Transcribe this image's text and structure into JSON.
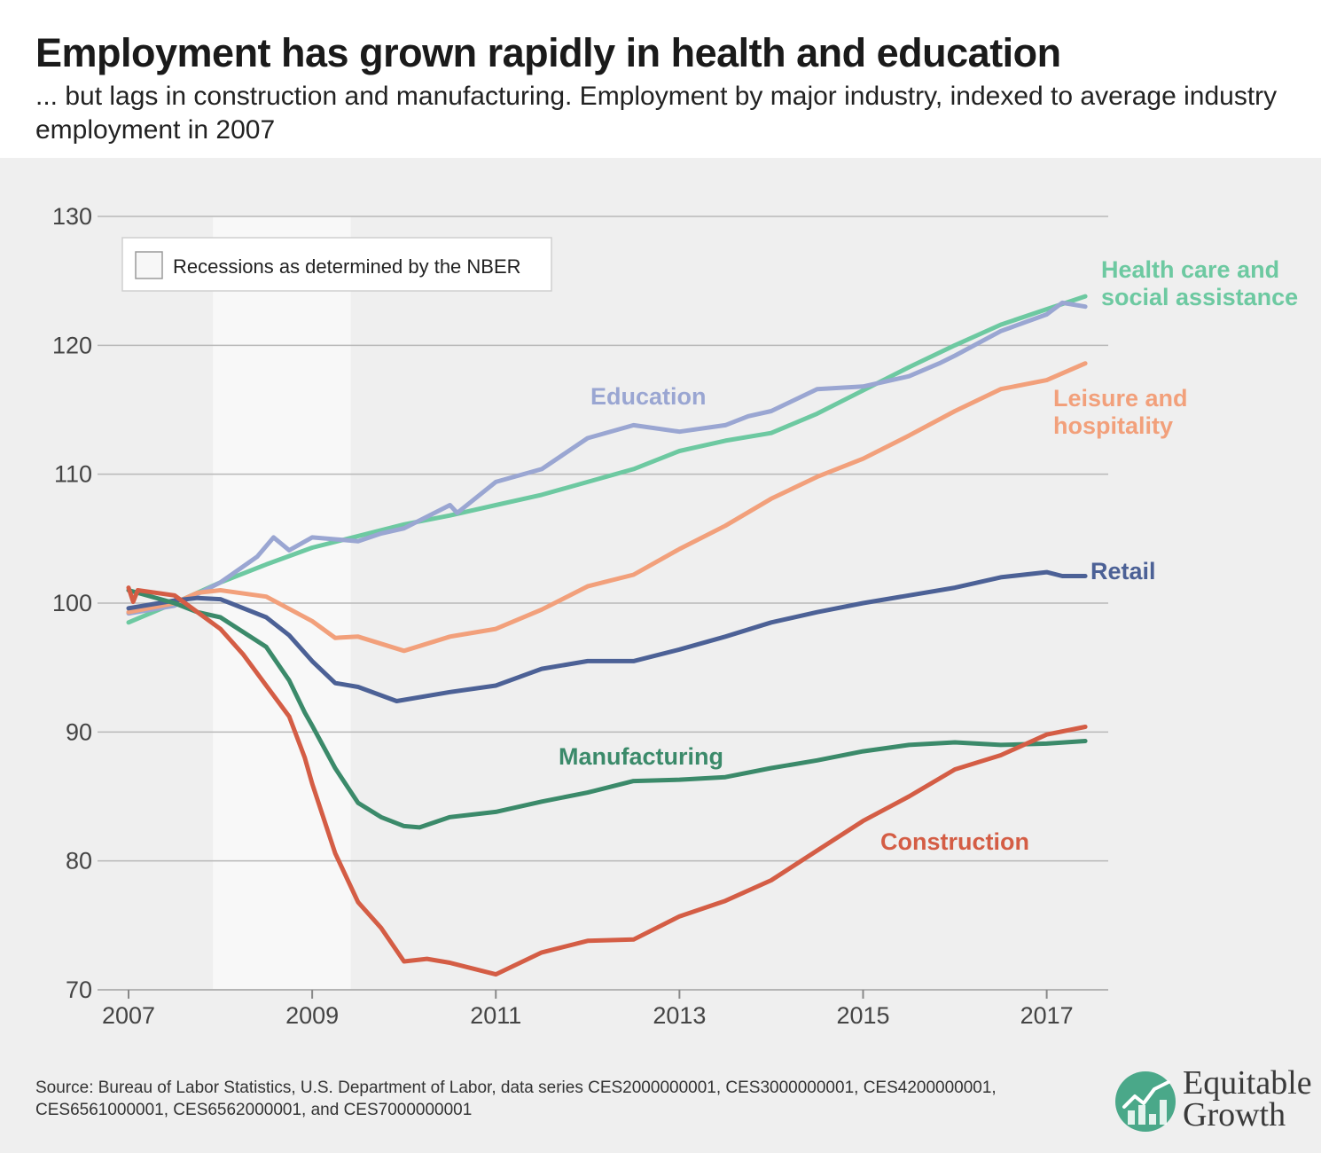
{
  "title": "Employment has grown rapidly in health and education",
  "subtitle": "... but lags in construction and manufacturing. Employment by major industry, indexed to average industry employment in 2007",
  "source": "Source: Bureau of Labor Statistics, U.S. Department of Labor, data series CES2000000001, CES3000000001, CES4200000001, CES6561000001, CES6562000001, and CES7000000001",
  "logo": {
    "line1": "Equitable",
    "line2": "Growth",
    "icon": "growth-chart-logo-icon",
    "color": "#4aa889"
  },
  "chart_data": {
    "type": "line",
    "ylim": [
      70,
      130
    ],
    "yticks": [
      70,
      80,
      90,
      100,
      110,
      120,
      130
    ],
    "xlim": [
      2007,
      2017.67
    ],
    "xticks": [
      2007,
      2009,
      2011,
      2013,
      2015,
      2017
    ],
    "xtick_labels": [
      "2007",
      "2009",
      "2011",
      "2013",
      "2015",
      "2017"
    ],
    "grid": "horizontal",
    "recession": {
      "start": 2007.92,
      "end": 2009.42,
      "legend_label": "Recessions as determined by the NBER"
    },
    "legend_placement": "top-left",
    "series": [
      {
        "name": "Health care and social assistance",
        "color": "#6dc9a1",
        "x": [
          2007.0,
          2007.5,
          2008.0,
          2008.5,
          2009.0,
          2009.5,
          2010.0,
          2010.5,
          2011.0,
          2011.5,
          2012.0,
          2012.5,
          2013.0,
          2013.5,
          2014.0,
          2014.5,
          2015.0,
          2015.5,
          2016.0,
          2016.5,
          2017.0,
          2017.42
        ],
        "y": [
          98.5,
          100.0,
          101.6,
          103.0,
          104.3,
          105.2,
          106.1,
          106.8,
          107.6,
          108.4,
          109.4,
          110.4,
          111.8,
          112.6,
          113.2,
          114.7,
          116.5,
          118.3,
          120.0,
          121.6,
          122.8,
          123.8
        ]
      },
      {
        "name": "Education",
        "color": "#9aa6d2",
        "x": [
          2007.0,
          2007.5,
          2008.0,
          2008.4,
          2008.58,
          2008.75,
          2009.0,
          2009.5,
          2009.75,
          2010.0,
          2010.5,
          2010.58,
          2011.0,
          2011.5,
          2012.0,
          2012.5,
          2013.0,
          2013.5,
          2013.75,
          2014.0,
          2014.5,
          2015.0,
          2015.5,
          2015.83,
          2016.0,
          2016.5,
          2017.0,
          2017.17,
          2017.42
        ],
        "y": [
          99.2,
          99.8,
          101.6,
          103.6,
          105.1,
          104.1,
          105.1,
          104.8,
          105.4,
          105.8,
          107.6,
          107.0,
          109.4,
          110.4,
          112.8,
          113.8,
          113.3,
          113.8,
          114.5,
          114.9,
          116.6,
          116.8,
          117.6,
          118.6,
          119.2,
          121.1,
          122.4,
          123.3,
          123.0
        ]
      },
      {
        "name": "Leisure and hospitality",
        "color": "#f2a07b",
        "x": [
          2007.0,
          2007.5,
          2007.75,
          2008.0,
          2008.5,
          2009.0,
          2009.25,
          2009.5,
          2010.0,
          2010.5,
          2011.0,
          2011.5,
          2012.0,
          2012.5,
          2013.0,
          2013.5,
          2014.0,
          2014.5,
          2015.0,
          2015.5,
          2016.0,
          2016.5,
          2017.0,
          2017.42
        ],
        "y": [
          99.3,
          100.0,
          100.8,
          101.0,
          100.5,
          98.6,
          97.3,
          97.4,
          96.3,
          97.4,
          98.0,
          99.5,
          101.3,
          102.2,
          104.2,
          106.0,
          108.1,
          109.8,
          111.2,
          113.0,
          114.9,
          116.6,
          117.3,
          118.6
        ]
      },
      {
        "name": "Retail",
        "color": "#4c6196",
        "x": [
          2007.0,
          2007.5,
          2007.75,
          2008.0,
          2008.5,
          2008.75,
          2009.0,
          2009.25,
          2009.5,
          2009.92,
          2010.5,
          2011.0,
          2011.5,
          2012.0,
          2012.5,
          2013.0,
          2013.5,
          2014.0,
          2014.5,
          2015.0,
          2015.5,
          2016.0,
          2016.5,
          2017.0,
          2017.17,
          2017.42
        ],
        "y": [
          99.6,
          100.2,
          100.4,
          100.3,
          98.9,
          97.5,
          95.5,
          93.8,
          93.5,
          92.4,
          93.1,
          93.6,
          94.9,
          95.5,
          95.5,
          96.4,
          97.4,
          98.5,
          99.3,
          100.0,
          100.6,
          101.2,
          102.0,
          102.4,
          102.1,
          102.1
        ]
      },
      {
        "name": "Manufacturing",
        "color": "#3b8a6a",
        "x": [
          2007.0,
          2007.5,
          2007.75,
          2008.0,
          2008.5,
          2008.75,
          2008.92,
          2009.0,
          2009.25,
          2009.5,
          2009.75,
          2010.0,
          2010.17,
          2010.5,
          2011.0,
          2011.5,
          2012.0,
          2012.5,
          2013.0,
          2013.5,
          2014.0,
          2014.5,
          2015.0,
          2015.5,
          2016.0,
          2016.5,
          2017.0,
          2017.42
        ],
        "y": [
          101.0,
          100.0,
          99.3,
          98.9,
          96.6,
          94.0,
          91.5,
          90.5,
          87.2,
          84.5,
          83.4,
          82.7,
          82.6,
          83.4,
          83.8,
          84.6,
          85.3,
          86.2,
          86.3,
          86.5,
          87.2,
          87.8,
          88.5,
          89.0,
          89.2,
          89.0,
          89.1,
          89.3
        ]
      },
      {
        "name": "Construction",
        "color": "#d45d45",
        "x": [
          2007.0,
          2007.05,
          2007.1,
          2007.5,
          2007.75,
          2008.0,
          2008.25,
          2008.5,
          2008.75,
          2008.92,
          2009.0,
          2009.25,
          2009.5,
          2009.75,
          2010.0,
          2010.25,
          2010.5,
          2011.0,
          2011.5,
          2012.0,
          2012.5,
          2013.0,
          2013.5,
          2014.0,
          2014.5,
          2015.0,
          2015.5,
          2016.0,
          2016.5,
          2017.0,
          2017.42
        ],
        "y": [
          101.2,
          100.1,
          101.0,
          100.6,
          99.3,
          98.0,
          96.0,
          93.6,
          91.2,
          88.0,
          86.0,
          80.6,
          76.8,
          74.8,
          72.2,
          72.4,
          72.1,
          71.2,
          72.9,
          73.8,
          73.9,
          75.7,
          76.9,
          78.5,
          80.8,
          83.1,
          85.0,
          87.1,
          88.2,
          89.8,
          90.4
        ]
      }
    ],
    "annotations": [
      {
        "text": "Education",
        "series": "Education"
      },
      {
        "text": "Health care and",
        "series": "Health care and social assistance"
      },
      {
        "text": "social assistance",
        "series": "Health care and social assistance"
      },
      {
        "text": "Leisure and",
        "series": "Leisure and hospitality"
      },
      {
        "text": "hospitality",
        "series": "Leisure and hospitality"
      },
      {
        "text": "Retail",
        "series": "Retail"
      },
      {
        "text": "Manufacturing",
        "series": "Manufacturing"
      },
      {
        "text": "Construction",
        "series": "Construction"
      }
    ]
  }
}
